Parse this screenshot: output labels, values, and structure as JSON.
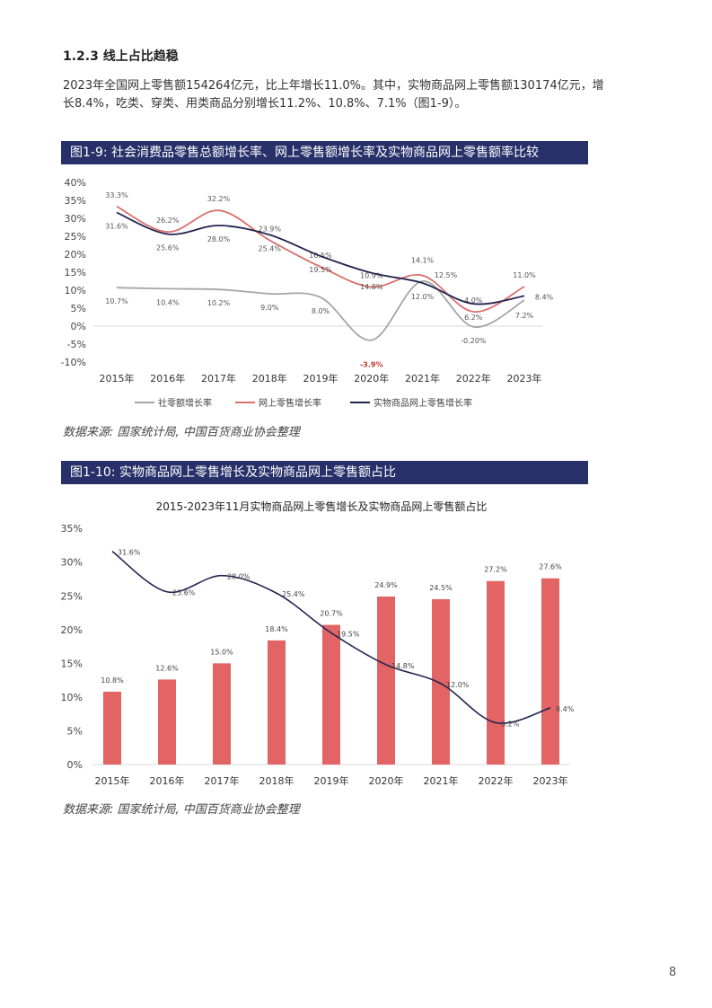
{
  "section_title": "1.2.3 线上占比趋稳",
  "paragraph": "2023年全国网上零售额154264亿元，比上年增长11.0%。其中，实物商品网上零售额130174亿元，增长8.4%，吃类、穿类、用类商品分别增长11.2%、10.8%、7.1%（图1-9）。",
  "figure1_caption": "图1-9: 社会消费品零售总额增长率、网上零售额增长率及实物商品网上零售额率比较",
  "figure2_caption": "图1-10: 实物商品网上零售增长及实物商品网上零售额占比",
  "source1": "数据来源: 国家统计局, 中国百货商业协会整理",
  "source2": "数据来源: 国家统计局, 中国百货商业协会整理",
  "page_number": "8",
  "colors": {
    "band": "#28306a",
    "online": "#d9706e",
    "physical": "#22264f",
    "retail": "#a6a6a6",
    "bar": "#e36464",
    "negative_label": "#c0392b"
  },
  "chart_data": [
    {
      "type": "line",
      "title": "",
      "categories": [
        "2015年",
        "2016年",
        "2017年",
        "2018年",
        "2019年",
        "2020年",
        "2021年",
        "2022年",
        "2023年"
      ],
      "ylim": [
        -10,
        40
      ],
      "yticks": [
        "-10%",
        "-5%",
        "0%",
        "5%",
        "10%",
        "15%",
        "20%",
        "25%",
        "30%",
        "35%",
        "40%"
      ],
      "ytick_values": [
        -10,
        -5,
        0,
        5,
        10,
        15,
        20,
        25,
        30,
        35,
        40
      ],
      "legend_position": "bottom",
      "grid": false,
      "series": [
        {
          "name": "社零额增长率",
          "values": [
            10.7,
            10.4,
            10.2,
            9.0,
            8.0,
            -3.9,
            12.5,
            -0.2,
            7.2
          ],
          "labels": [
            "10.7%",
            "10.4%",
            "10.2%",
            "9.0%",
            "8.0%",
            "-3.9%",
            "12.5%",
            "-0.20%",
            "7.2%"
          ]
        },
        {
          "name": "网上零售增长率",
          "values": [
            33.3,
            26.2,
            32.2,
            23.9,
            16.5,
            10.9,
            14.1,
            4.0,
            11.0
          ],
          "labels": [
            "33.3%",
            "26.2%",
            "32.2%",
            "23.9%",
            "16.5%",
            "10.9%",
            "14.1%",
            "4.0%",
            "11.0%"
          ]
        },
        {
          "name": "实物商品网上零售增长率",
          "values": [
            31.6,
            25.6,
            28.0,
            25.4,
            19.5,
            14.8,
            12.0,
            6.2,
            8.4
          ],
          "labels": [
            "31.6%",
            "25.6%",
            "28.0%",
            "25.4%",
            "19.5%",
            "14.8%",
            "12.0%",
            "6.2%",
            "8.4%"
          ]
        }
      ]
    },
    {
      "type": "bar+line",
      "title": "2015-2023年11月实物商品网上零售增长及实物商品网上零售额占比",
      "categories": [
        "2015年",
        "2016年",
        "2017年",
        "2018年",
        "2019年",
        "2020年",
        "2021年",
        "2022年",
        "2023年"
      ],
      "ylim": [
        0,
        35
      ],
      "yticks": [
        "0%",
        "5%",
        "10%",
        "15%",
        "20%",
        "25%",
        "30%",
        "35%"
      ],
      "ytick_values": [
        0,
        5,
        10,
        15,
        20,
        25,
        30,
        35
      ],
      "grid": false,
      "bars": {
        "values": [
          10.8,
          12.6,
          15.0,
          18.4,
          20.7,
          24.9,
          24.5,
          27.2,
          27.6
        ],
        "labels": [
          "10.8%",
          "12.6%",
          "15.0%",
          "18.4%",
          "20.7%",
          "24.9%",
          "24.5%",
          "27.2%",
          "27.6%"
        ]
      },
      "line": {
        "values": [
          31.6,
          25.6,
          28.0,
          25.4,
          19.5,
          14.8,
          12.0,
          6.2,
          8.4
        ],
        "labels": [
          "31.6%",
          "25.6%",
          "28.0%",
          "25.4%",
          "19.5%",
          "14.8%",
          "12.0%",
          "6.2%",
          "8.4%"
        ]
      }
    }
  ]
}
